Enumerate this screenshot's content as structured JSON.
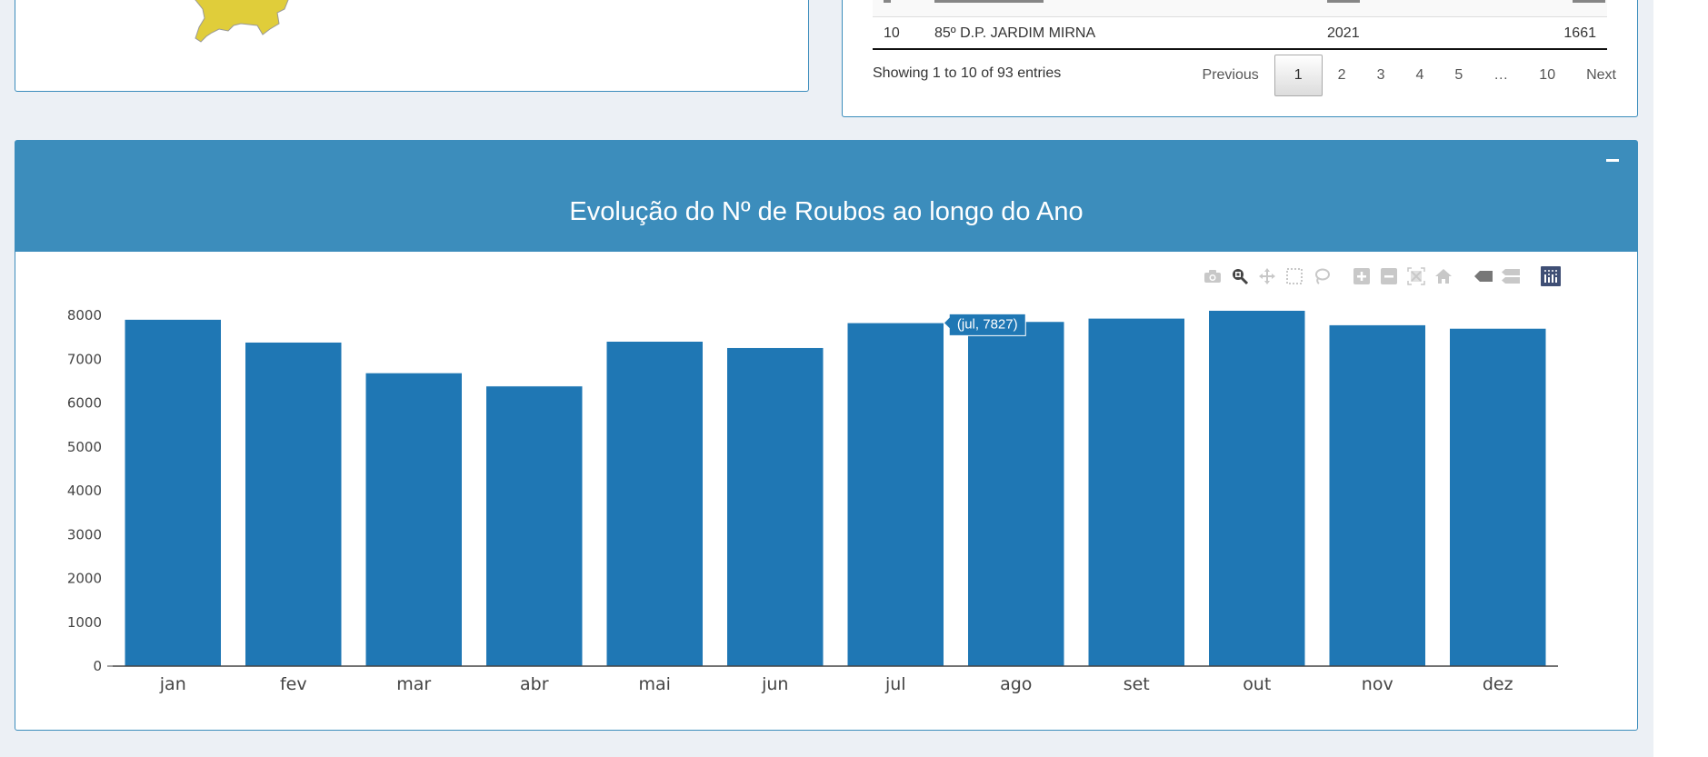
{
  "map_panel": {
    "shape_color": "#e0cd3a"
  },
  "table_panel": {
    "visible_row": {
      "index": "10",
      "name": "85º D.P. JARDIM MIRNA",
      "year": "2021",
      "value": "1661"
    },
    "info": "Showing 1 to 10 of 93 entries",
    "pagination": {
      "previous": "Previous",
      "pages": [
        "1",
        "2",
        "3",
        "4",
        "5",
        "…",
        "10"
      ],
      "active": "1",
      "next": "Next"
    }
  },
  "chart_box": {
    "title": "Evolução do Nº de Roubos ao longo do Ano",
    "collapse_label": "−",
    "header_color": "#3c8dbc",
    "modebar": [
      "camera-icon",
      "zoom-icon",
      "pan-icon",
      "box-select-icon",
      "lasso-icon",
      "zoom-in-icon",
      "zoom-out-icon",
      "autoscale-icon",
      "reset-axes-icon",
      "hover-closest-icon",
      "hover-compare-icon",
      "plotly-logo-icon"
    ],
    "tooltip": "(jul, 7827)"
  },
  "chart_data": {
    "type": "bar",
    "title": "Evolução do Nº de Roubos ao longo do Ano",
    "xlabel": "",
    "ylabel": "",
    "categories": [
      "jan",
      "fev",
      "mar",
      "abr",
      "mai",
      "jun",
      "jul",
      "ago",
      "set",
      "out",
      "nov",
      "dez"
    ],
    "values": [
      7905,
      7385,
      6685,
      6385,
      7405,
      7260,
      7827,
      7855,
      7930,
      8110,
      7780,
      7700
    ],
    "ylim": [
      0,
      8300
    ],
    "yticks": [
      0,
      1000,
      2000,
      3000,
      4000,
      5000,
      6000,
      7000,
      8000
    ],
    "grid": false,
    "bar_color": "#1f77b4",
    "legend": false
  }
}
